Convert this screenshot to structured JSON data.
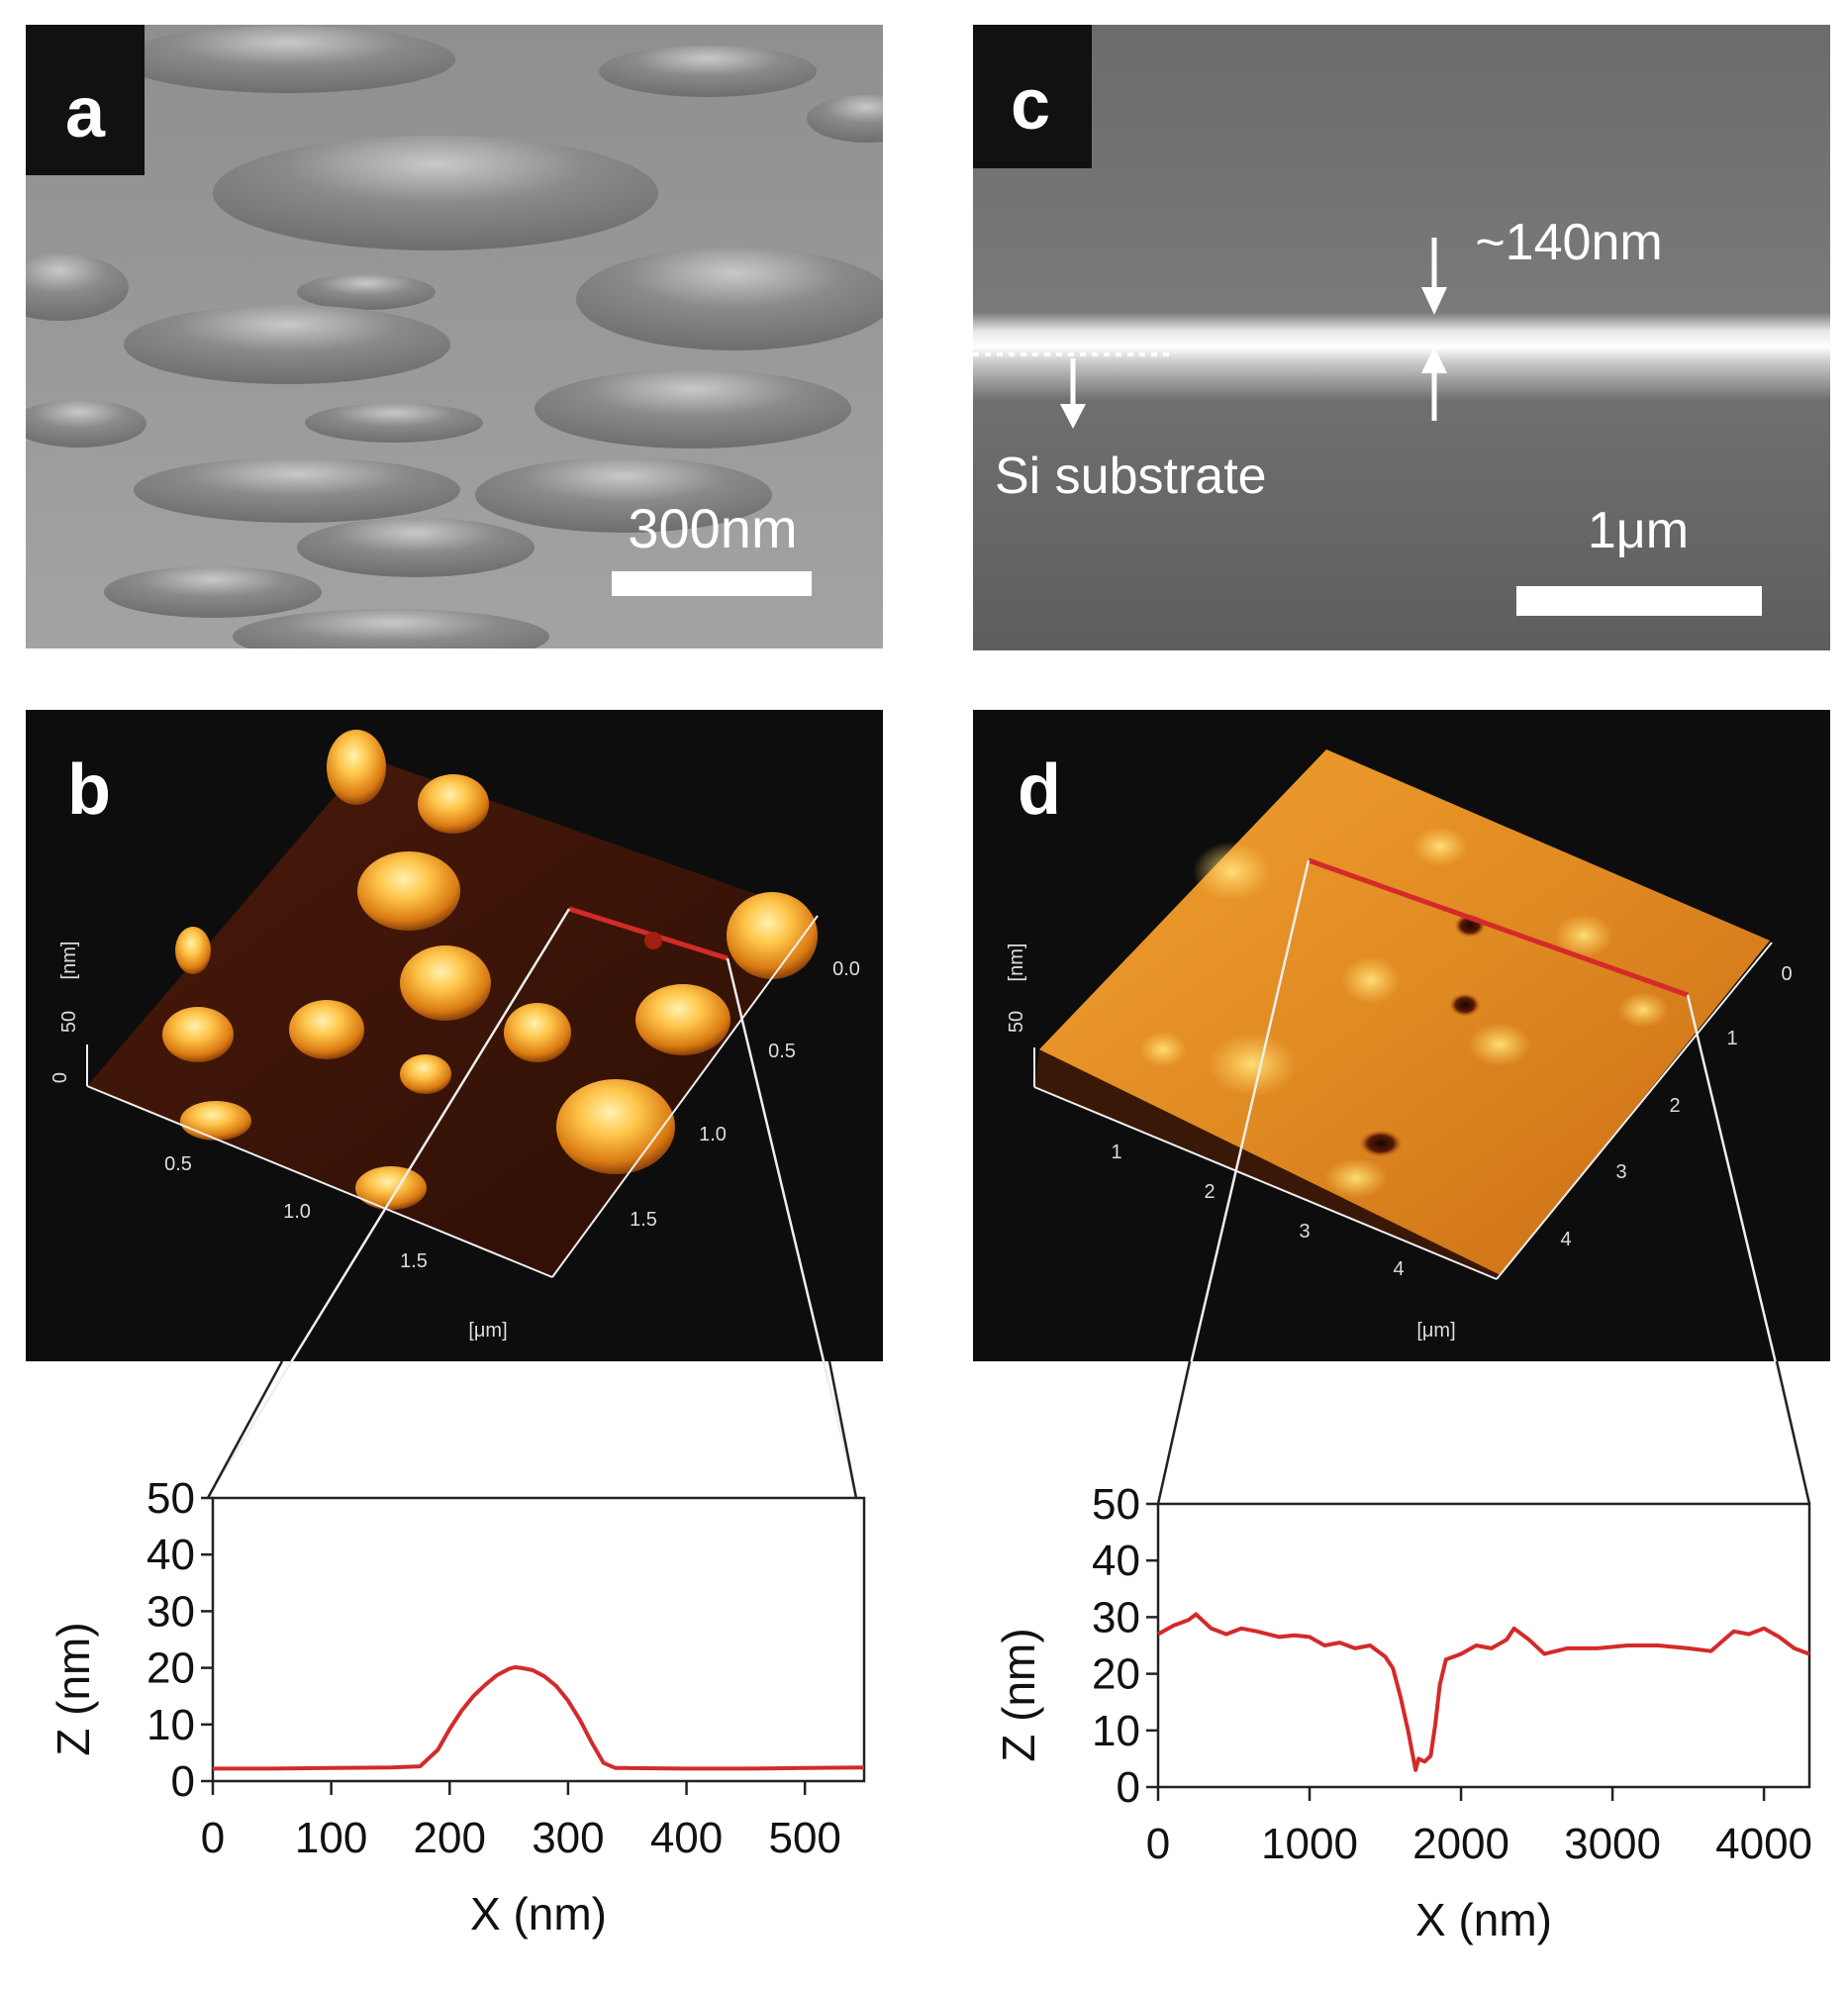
{
  "panels": {
    "a": {
      "label": "a",
      "scale_bar_text": "300nm"
    },
    "b": {
      "label": "b",
      "z_axis_ticks": [
        "0",
        "50"
      ],
      "z_unit": "[nm]",
      "x_axis_ticks": [
        "0.5",
        "1.0",
        "1.5"
      ],
      "y_axis_ticks": [
        "0.0",
        "0.5",
        "1.0",
        "1.5"
      ],
      "xy_unit": "[μm]"
    },
    "c": {
      "label": "c",
      "thickness_text": "~140nm",
      "substrate_text": "Si substrate",
      "scale_bar_text": "1μm"
    },
    "d": {
      "label": "d",
      "z_axis_ticks": [
        "50"
      ],
      "z_unit": "[nm]",
      "x_axis_ticks": [
        "1",
        "2",
        "3",
        "4"
      ],
      "y_axis_ticks": [
        "0",
        "1",
        "2",
        "3",
        "4"
      ],
      "xy_unit": "[μm]"
    }
  },
  "colors": {
    "profile_line": "#d42a2a",
    "afm_dark": "#3a1408",
    "afm_bright": "#ffd060",
    "sem_gray": "#8a8a8a"
  },
  "chart_data": [
    {
      "type": "line",
      "title": "",
      "xlabel": "X (nm)",
      "ylabel": "Z (nm)",
      "xlim": [
        0,
        550
      ],
      "ylim": [
        0,
        50
      ],
      "x_ticks": [
        0,
        100,
        200,
        300,
        400,
        500
      ],
      "y_ticks": [
        0,
        10,
        20,
        30,
        40,
        50
      ],
      "series": [
        {
          "x": [
            0,
            50,
            100,
            150,
            175,
            190,
            200,
            210,
            220,
            230,
            240,
            250,
            255,
            260,
            270,
            280,
            290,
            300,
            310,
            320,
            330,
            340,
            350,
            400,
            450,
            500,
            550
          ],
          "y": [
            2.2,
            2.2,
            2.3,
            2.4,
            2.6,
            5.5,
            9.2,
            12.4,
            15.0,
            17.0,
            18.7,
            19.8,
            20.1,
            20.0,
            19.6,
            18.5,
            16.8,
            14.2,
            10.8,
            6.8,
            3.2,
            2.3,
            2.3,
            2.2,
            2.2,
            2.3,
            2.4
          ]
        }
      ]
    },
    {
      "type": "line",
      "title": "",
      "xlabel": "X (nm)",
      "ylabel": "Z (nm)",
      "xlim": [
        0,
        4300
      ],
      "ylim": [
        0,
        50
      ],
      "x_ticks": [
        0,
        1000,
        2000,
        3000,
        4000
      ],
      "y_ticks": [
        0,
        10,
        20,
        30,
        40,
        50
      ],
      "series": [
        {
          "x": [
            0,
            100,
            200,
            250,
            350,
            450,
            550,
            650,
            800,
            900,
            1000,
            1100,
            1200,
            1300,
            1400,
            1500,
            1550,
            1600,
            1650,
            1700,
            1720,
            1760,
            1800,
            1830,
            1860,
            1900,
            2000,
            2100,
            2200,
            2300,
            2350,
            2450,
            2550,
            2700,
            2900,
            3100,
            3300,
            3500,
            3650,
            3800,
            3900,
            4000,
            4100,
            4200,
            4300
          ],
          "y": [
            27,
            28.5,
            29.5,
            30.5,
            28,
            27,
            28,
            27.5,
            26.5,
            26.8,
            26.5,
            25,
            25.5,
            24.5,
            25,
            23,
            21,
            16,
            10,
            3,
            5,
            4.5,
            5.5,
            11,
            18,
            22.5,
            23.5,
            25,
            24.5,
            26,
            28,
            26,
            23.5,
            24.5,
            24.5,
            25,
            25,
            24.5,
            24,
            27.5,
            27,
            28,
            26.5,
            24.5,
            23.5
          ]
        }
      ]
    }
  ]
}
